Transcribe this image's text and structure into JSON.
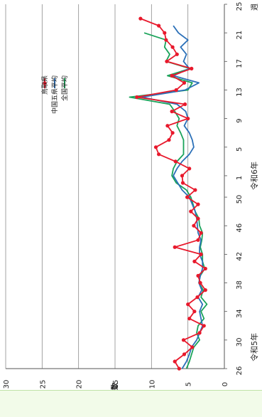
{
  "chart_data": {
    "type": "line",
    "title": "",
    "ylabel": "発生人数",
    "xlabel": "週",
    "ylim": [
      0,
      30
    ],
    "yticks": [
      "0",
      "5",
      "10",
      "15",
      "20",
      "25",
      "30"
    ],
    "xticks": [
      {
        "week": 26,
        "label": "26"
      },
      {
        "week": 30,
        "label": "30"
      },
      {
        "week": 34,
        "label": "34"
      },
      {
        "week": 38,
        "label": "38"
      },
      {
        "week": 42,
        "label": "42"
      },
      {
        "week": 46,
        "label": "46"
      },
      {
        "week": 50,
        "label": "50"
      },
      {
        "week": 1,
        "label": "1"
      },
      {
        "week": 5,
        "label": "5"
      },
      {
        "week": 9,
        "label": "9"
      },
      {
        "week": 13,
        "label": "13"
      },
      {
        "week": 17,
        "label": "17"
      },
      {
        "week": 21,
        "label": "21"
      },
      {
        "week": 25,
        "label": "25"
      }
    ],
    "x_range_weeks": [
      "R5-26",
      "R6-25"
    ],
    "era_labels": [
      {
        "text": "令和5年",
        "at_week": "R5-29"
      },
      {
        "text": "令和6年",
        "at_week": "R6-1"
      }
    ],
    "grid": "horizontal",
    "legend_position": "top-right",
    "series": [
      {
        "name": "鳥取県",
        "color": "#e8192c",
        "marker": "circle",
        "start_week": "R5-26",
        "values": [
          6.2,
          6.8,
          5.5,
          4.4,
          5.6,
          3.4,
          2.8,
          4.8,
          4.1,
          5.0,
          3.7,
          2.6,
          3.3,
          3.6,
          2.6,
          4.1,
          3.2,
          6.8,
          3.6,
          3.2,
          4.2,
          3.6,
          4.6,
          3.6,
          5.1,
          4.0,
          5.7,
          5.8,
          4.8,
          6.7,
          9.0,
          9.4,
          7.6,
          7.1,
          7.8,
          5.0,
          7.2,
          5.4,
          12.0,
          6.6,
          5.5,
          7.2,
          4.5,
          7.9,
          6.5,
          7.1,
          8.0,
          8.2,
          9.0,
          11.5
        ]
      },
      {
        "name": "中国五県平均",
        "color": "#2b70b8",
        "marker": "none",
        "start_week": "R5-26",
        "values": [
          5.8,
          5.2,
          4.8,
          4.5,
          3.8,
          3.4,
          3.0,
          3.2,
          3.4,
          3.0,
          3.6,
          3.1,
          3.5,
          3.3,
          3.0,
          3.0,
          3.4,
          3.4,
          3.2,
          3.6,
          3.7,
          3.8,
          4.0,
          4.4,
          4.8,
          5.8,
          6.4,
          7.0,
          6.5,
          5.8,
          4.8,
          4.2,
          4.4,
          4.8,
          5.5,
          5.0,
          5.3,
          6.5,
          11.3,
          5.4,
          3.5,
          7.0,
          4.8,
          5.6,
          5.2,
          6.0,
          5.0,
          6.3,
          7.0
        ]
      },
      {
        "name": "全国平均",
        "color": "#1aa35a",
        "marker": "none",
        "start_week": "R5-26",
        "values": [
          5.2,
          4.8,
          4.5,
          4.2,
          3.4,
          3.8,
          3.6,
          2.8,
          3.2,
          2.4,
          3.2,
          2.9,
          3.5,
          3.3,
          2.7,
          3.0,
          3.0,
          3.3,
          3.1,
          3.0,
          3.4,
          3.5,
          4.0,
          4.3,
          4.6,
          5.2,
          6.6,
          7.2,
          7.0,
          6.5,
          5.6,
          5.6,
          5.6,
          6.0,
          6.5,
          6.2,
          6.8,
          7.5,
          13.0,
          5.0,
          4.4,
          7.8,
          4.7,
          8.0,
          7.5,
          8.2,
          8.0,
          11.0
        ]
      }
    ]
  }
}
